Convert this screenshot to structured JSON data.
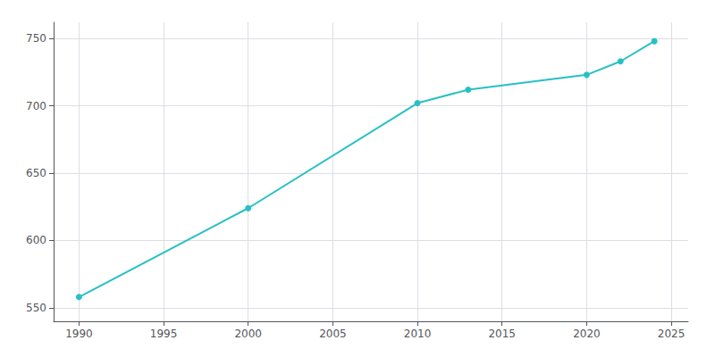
{
  "chart_data": {
    "type": "line",
    "x": [
      1990,
      2000,
      2010,
      2013,
      2020,
      2022,
      2024
    ],
    "values": [
      558,
      624,
      702,
      712,
      723,
      733,
      748
    ],
    "color": "#28c0c4",
    "marker": "circle",
    "xlim": [
      1988.5,
      2026
    ],
    "ylim": [
      540,
      762
    ],
    "xticks": [
      1990,
      1995,
      2000,
      2005,
      2010,
      2015,
      2020,
      2025
    ],
    "yticks": [
      550,
      600,
      650,
      700,
      750
    ],
    "grid": true
  }
}
